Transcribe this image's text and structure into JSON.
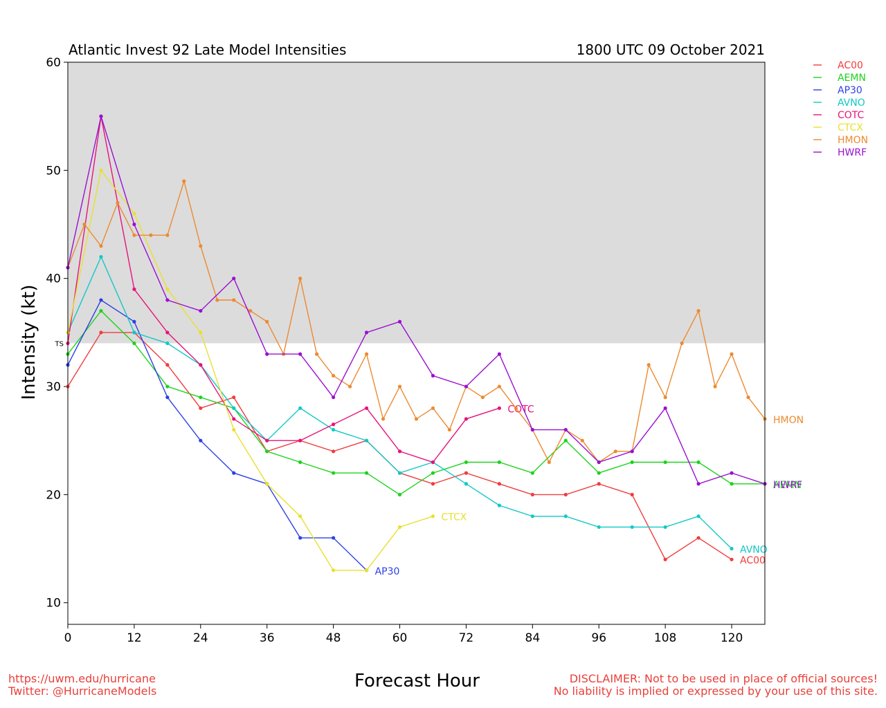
{
  "chart_data": {
    "type": "line",
    "title": "Atlantic Invest 92 Late Model Intensities",
    "subtitle": "1800 UTC 09 October 2021",
    "xlabel": "Forecast Hour",
    "ylabel": "Intensity (kt)",
    "xlim": [
      0,
      126
    ],
    "ylim": [
      8,
      60
    ],
    "xticks": [
      0,
      12,
      24,
      36,
      48,
      60,
      72,
      84,
      96,
      108,
      120
    ],
    "yticks": [
      10,
      20,
      30,
      40,
      50,
      60
    ],
    "shaded_region": {
      "from": 34,
      "to": 60,
      "label": "TS",
      "color": "#dcdcdc"
    },
    "legend_position": "right",
    "series": [
      {
        "name": "AC00",
        "color": "#f03c3c",
        "x": [
          0,
          6,
          12,
          18,
          24,
          30,
          36,
          42,
          48,
          54,
          60,
          66,
          72,
          78,
          84,
          90,
          96,
          102,
          108,
          114,
          120
        ],
        "y": [
          30,
          35,
          35,
          32,
          28,
          29,
          24,
          25,
          24,
          25,
          22,
          21,
          22,
          21,
          20,
          20,
          21,
          20,
          14,
          16,
          14
        ],
        "end_label": "AC00"
      },
      {
        "name": "AEMN",
        "color": "#1cd31c",
        "x": [
          0,
          6,
          12,
          18,
          24,
          30,
          36,
          42,
          48,
          54,
          60,
          66,
          72,
          78,
          84,
          90,
          96,
          102,
          108,
          114,
          120,
          126
        ],
        "y": [
          33,
          37,
          34,
          30,
          29,
          28,
          24,
          23,
          22,
          22,
          20,
          22,
          23,
          23,
          22,
          25,
          22,
          23,
          23,
          23,
          21,
          21
        ],
        "end_label": "AEMN"
      },
      {
        "name": "AP30",
        "color": "#2b40e6",
        "x": [
          0,
          6,
          12,
          18,
          24,
          30,
          36,
          42,
          48,
          54
        ],
        "y": [
          32,
          38,
          36,
          29,
          25,
          22,
          21,
          16,
          16,
          13
        ],
        "end_label": "AP30"
      },
      {
        "name": "AVNO",
        "color": "#12c8c8",
        "x": [
          0,
          6,
          12,
          18,
          24,
          30,
          36,
          42,
          48,
          54,
          60,
          66,
          72,
          78,
          84,
          90,
          96,
          102,
          108,
          114,
          120
        ],
        "y": [
          35,
          42,
          35,
          34,
          32,
          28,
          25,
          28,
          26,
          25,
          22,
          23,
          21,
          19,
          18,
          18,
          17,
          17,
          17,
          18,
          15
        ],
        "end_label": "AVNO"
      },
      {
        "name": "COTC",
        "color": "#e8127a",
        "x": [
          0,
          6,
          12,
          18,
          24,
          30,
          36,
          42,
          48,
          54,
          60,
          66,
          72,
          78
        ],
        "y": [
          34,
          55,
          39,
          35,
          32,
          27,
          25,
          25,
          26.5,
          28,
          24,
          23,
          27,
          28
        ],
        "end_label": "COTC"
      },
      {
        "name": "CTCX",
        "color": "#e8e030",
        "x": [
          0,
          6,
          12,
          18,
          24,
          30,
          36,
          42,
          48,
          54,
          60,
          66
        ],
        "y": [
          35,
          50,
          46,
          39,
          35,
          26,
          21,
          18,
          13,
          13,
          17,
          18
        ],
        "end_label": "CTCX"
      },
      {
        "name": "HMON",
        "color": "#ec8a30",
        "x": [
          0,
          3,
          6,
          9,
          12,
          15,
          18,
          21,
          24,
          27,
          30,
          33,
          36,
          39,
          42,
          45,
          48,
          51,
          54,
          57,
          60,
          63,
          66,
          69,
          72,
          75,
          78,
          81,
          84,
          87,
          90,
          93,
          96,
          99,
          102,
          105,
          108,
          111,
          114,
          117,
          120,
          123,
          126
        ],
        "y": [
          41,
          45,
          43,
          47,
          44,
          44,
          44,
          49,
          43,
          38,
          38,
          37,
          36,
          33,
          40,
          33,
          31,
          30,
          33,
          27,
          30,
          27,
          28,
          26,
          30,
          29,
          30,
          28,
          26,
          23,
          26,
          25,
          23,
          24,
          24,
          32,
          29,
          34,
          37,
          30,
          33,
          29,
          27
        ],
        "end_label": "HMON"
      },
      {
        "name": "HWRF",
        "color": "#9a10d0",
        "x": [
          0,
          6,
          12,
          18,
          24,
          30,
          36,
          42,
          48,
          54,
          60,
          66,
          72,
          78,
          84,
          90,
          96,
          102,
          108,
          114,
          120,
          126
        ],
        "y": [
          41,
          55,
          45,
          38,
          37,
          40,
          33,
          33,
          29,
          35,
          36,
          31,
          30,
          33,
          26,
          26,
          23,
          24,
          28,
          21,
          22,
          21
        ],
        "end_label": "HWRF"
      }
    ]
  },
  "footer": {
    "url": "https://uwm.edu/hurricane",
    "twitter": "Twitter: @HurricaneModels",
    "disclaimer_line1": "DISCLAIMER: Not to be used in place of official sources!",
    "disclaimer_line2": "No liability is implied or expressed by your use of this site."
  }
}
